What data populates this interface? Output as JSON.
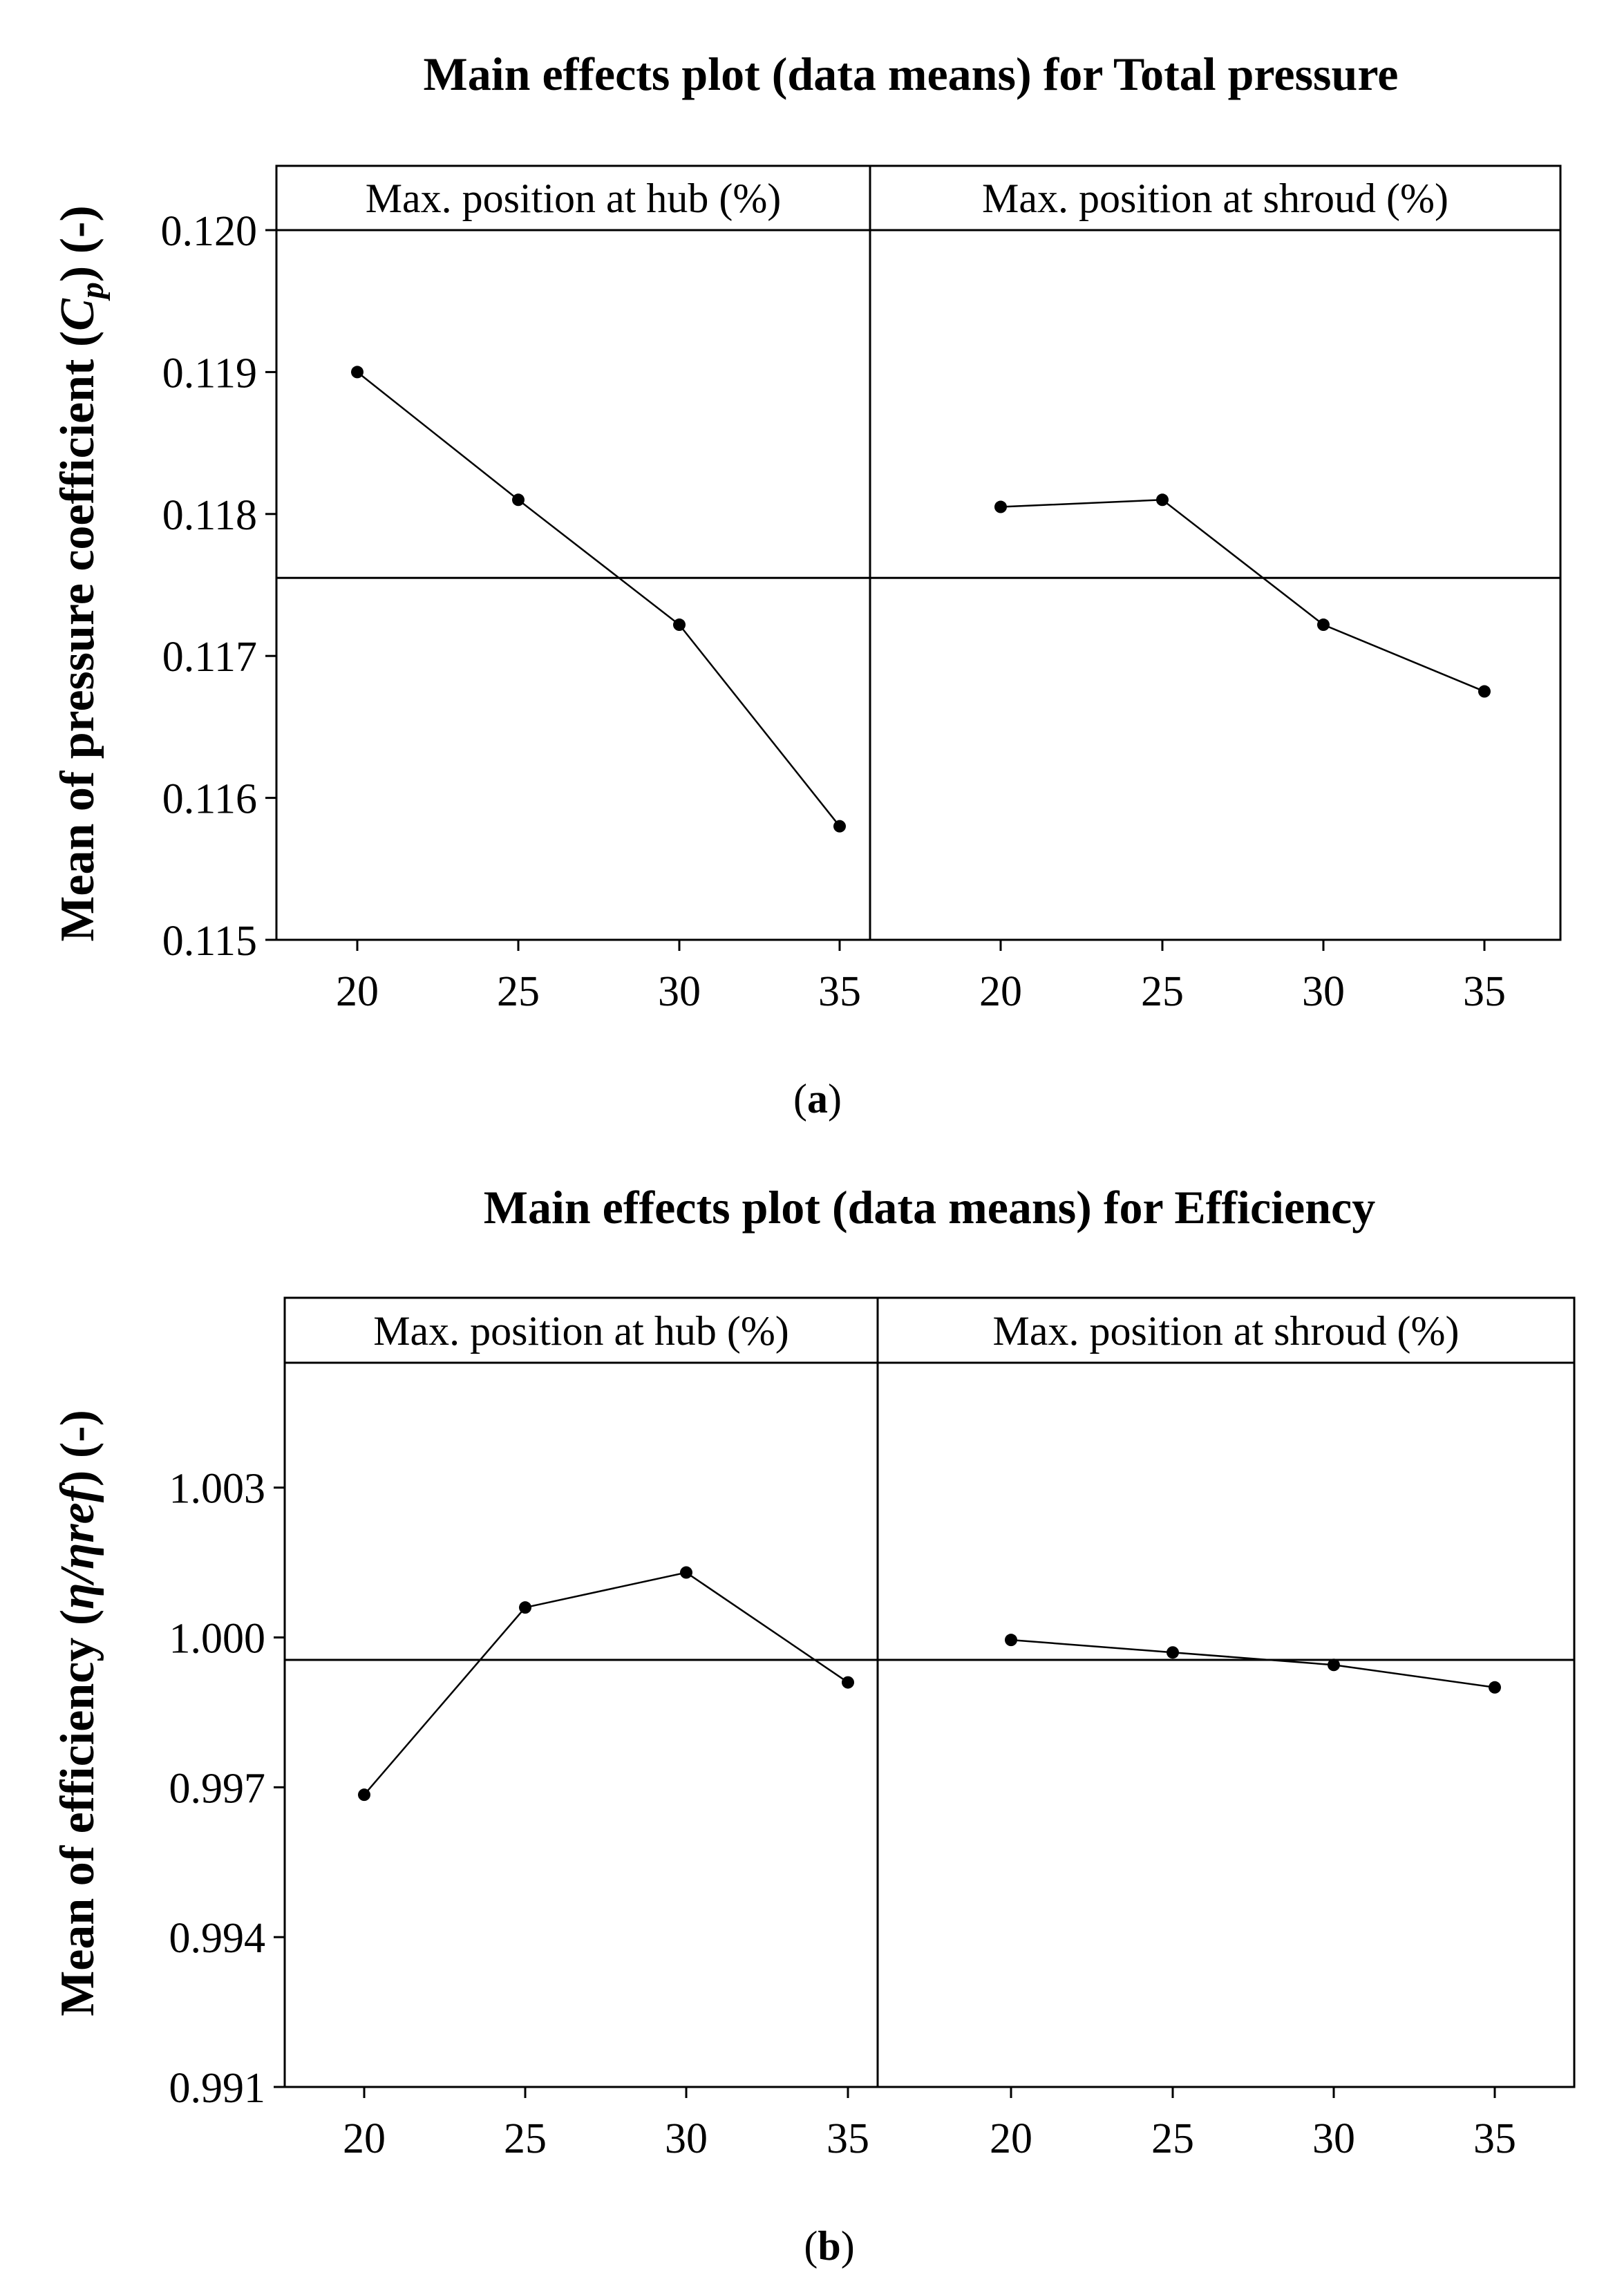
{
  "chart_data": [
    {
      "type": "line",
      "title": "Main effects plot (data means) for Total pressure",
      "ylabel_prefix": "Mean of pressure coefficient (",
      "ylabel_symbol": "C",
      "ylabel_subscript": "p",
      "ylabel_suffix": ") (-)",
      "ylim": [
        0.115,
        0.12
      ],
      "yticks": [
        "0.115",
        "0.116",
        "0.117",
        "0.118",
        "0.119",
        "0.120"
      ],
      "xticks": [
        "20",
        "25",
        "30",
        "35"
      ],
      "x": [
        20,
        25,
        30,
        35
      ],
      "grand_mean": 0.11755,
      "caption": "(a)",
      "caption_letter": "a",
      "panels": [
        {
          "name": "Max. position at hub (%)",
          "values": [
            0.119,
            0.1181,
            0.11722,
            0.1158
          ]
        },
        {
          "name": "Max. position at shroud (%)",
          "values": [
            0.11805,
            0.1181,
            0.11722,
            0.11675
          ]
        }
      ]
    },
    {
      "type": "line",
      "title": "Main effects plot (data means) for Efficiency",
      "ylabel_prefix": "Mean of efficiency (",
      "ylabel_symbol": "η/ηref",
      "ylabel_subscript": "",
      "ylabel_suffix": ") (-)",
      "ylim": [
        0.991,
        1.0055
      ],
      "yticks": [
        "0.991",
        "0.994",
        "0.997",
        "1.000",
        "1.003"
      ],
      "xticks": [
        "20",
        "25",
        "30",
        "35"
      ],
      "x": [
        20,
        25,
        30,
        35
      ],
      "grand_mean": 0.99955,
      "caption": "(b)",
      "caption_letter": "b",
      "panels": [
        {
          "name": "Max. position at hub (%)",
          "values": [
            0.99685,
            1.0006,
            1.0013,
            0.9991
          ]
        },
        {
          "name": "Max. position at shroud (%)",
          "values": [
            0.99995,
            0.9997,
            0.99945,
            0.999
          ]
        }
      ]
    }
  ]
}
